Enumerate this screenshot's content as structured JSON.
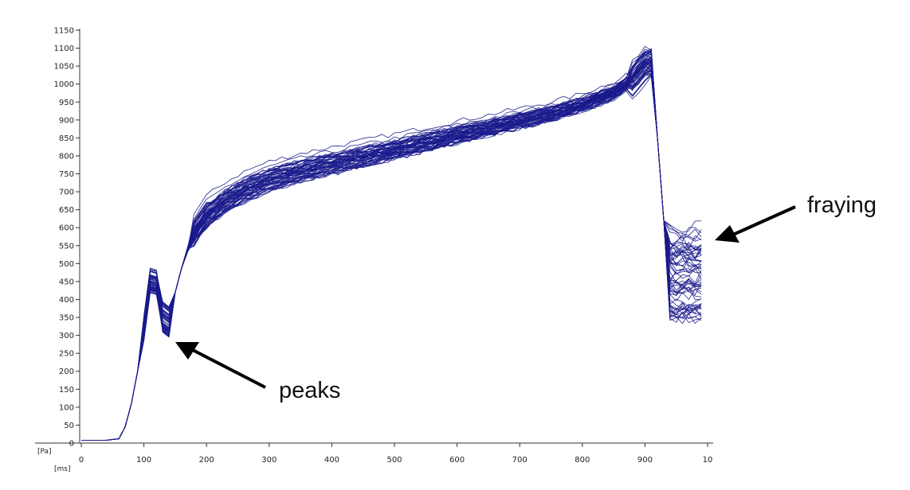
{
  "chart_data": {
    "type": "line",
    "title": "",
    "y_unit_label": "[Pa]",
    "x_unit_label": "[ms]",
    "xlim": [
      0,
      1000
    ],
    "ylim": [
      0,
      1150
    ],
    "x_ticks": [
      "0",
      "100",
      "200",
      "300",
      "400",
      "500",
      "600",
      "700",
      "800",
      "900",
      "10"
    ],
    "y_ticks": [
      "0",
      "50",
      "100",
      "150",
      "200",
      "250",
      "300",
      "350",
      "400",
      "450",
      "500",
      "550",
      "600",
      "650",
      "700",
      "750",
      "800",
      "850",
      "900",
      "950",
      "1000",
      "1050",
      "1100",
      "1150"
    ],
    "grid": false,
    "series_color": "#1a1a8c",
    "series_count": 60,
    "representative_curve": {
      "x": [
        0,
        40,
        60,
        70,
        80,
        90,
        100,
        112,
        122,
        135,
        150,
        165,
        180,
        200,
        230,
        260,
        300,
        350,
        400,
        450,
        500,
        550,
        600,
        650,
        700,
        750,
        800,
        850,
        880,
        900,
        910,
        920,
        930,
        940,
        950,
        960,
        970,
        980,
        990
      ],
      "y": [
        8,
        8,
        12,
        45,
        110,
        200,
        320,
        480,
        440,
        300,
        420,
        520,
        580,
        630,
        670,
        700,
        730,
        755,
        775,
        795,
        815,
        835,
        855,
        875,
        895,
        915,
        940,
        975,
        1010,
        1050,
        1060,
        850,
        620,
        470,
        430,
        425,
        420,
        415,
        410
      ]
    },
    "annotations": [
      {
        "text": "peaks",
        "points_to": [
          140,
          290
        ]
      },
      {
        "text": "fraying",
        "points_to": [
          995,
          555
        ]
      }
    ]
  }
}
